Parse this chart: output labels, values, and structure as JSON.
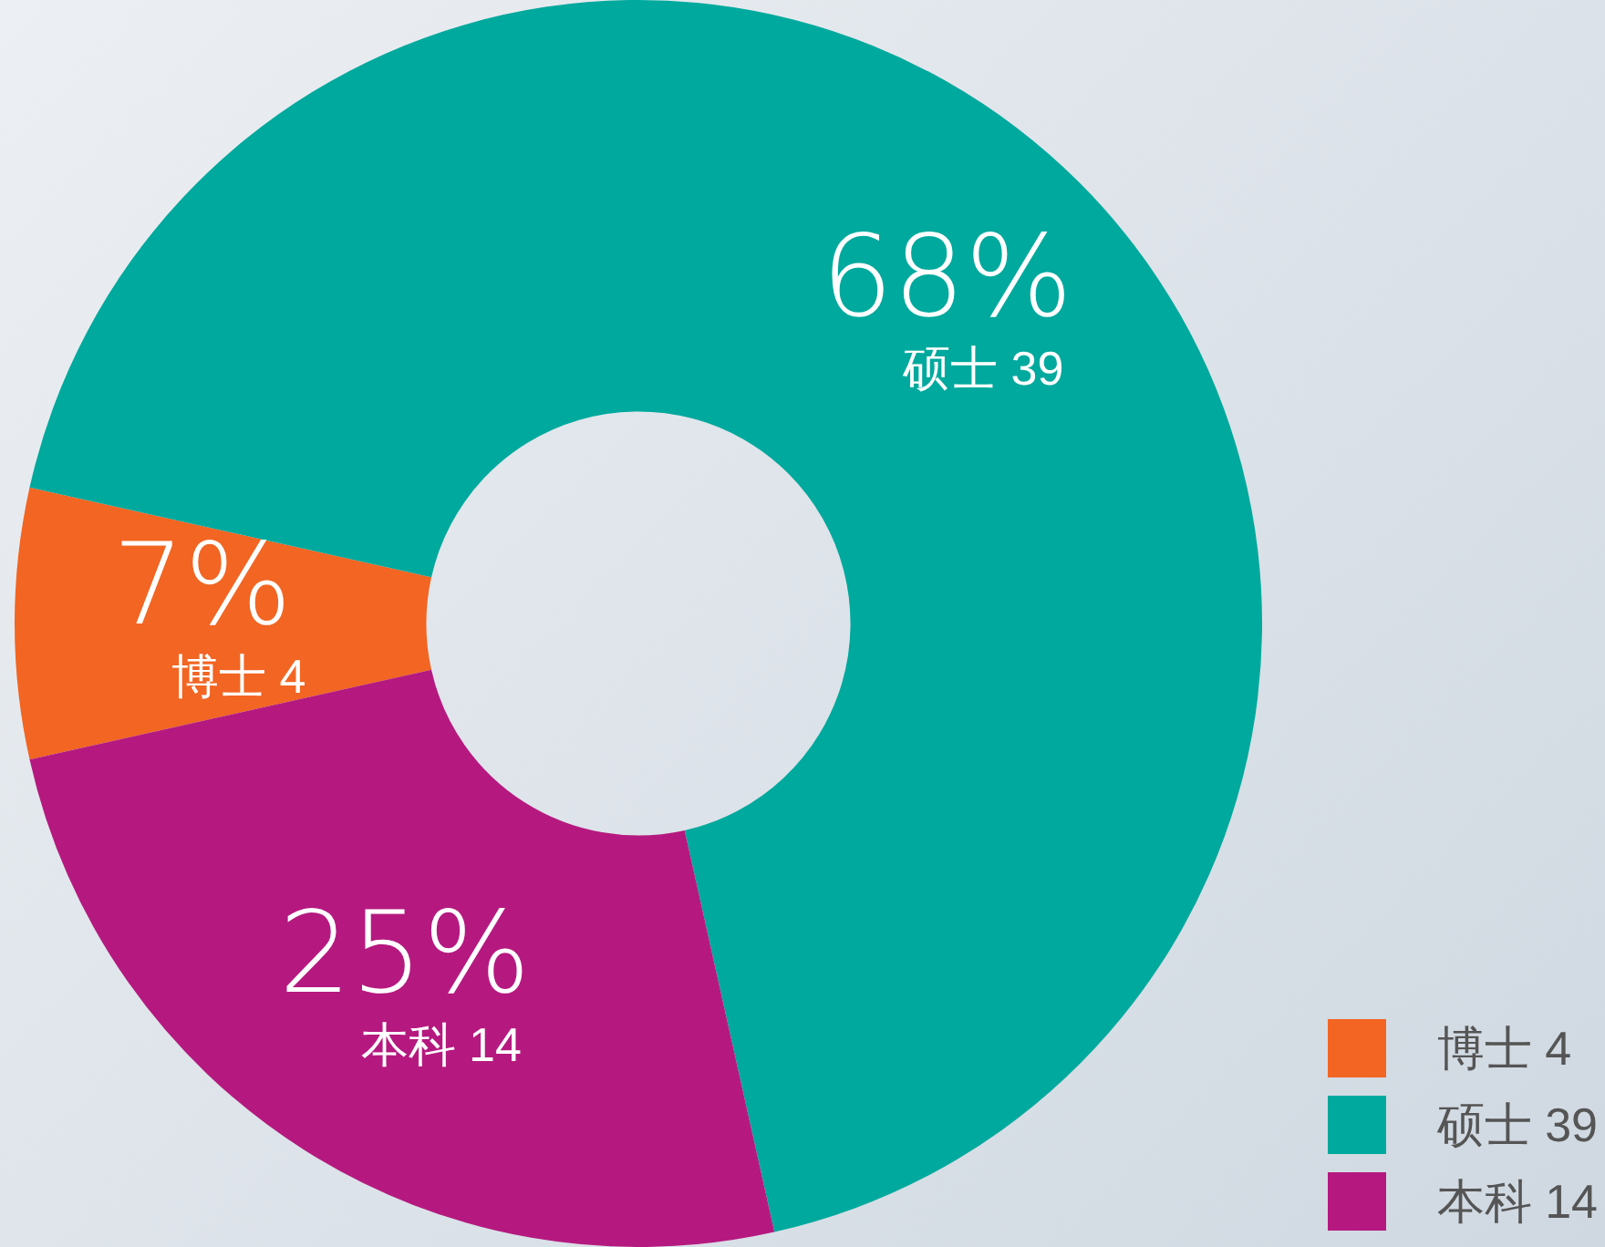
{
  "chart_data": {
    "type": "donut",
    "categories": [
      "博士 4",
      "硕士 39",
      "本科 14"
    ],
    "values": [
      7,
      68,
      25
    ],
    "value_labels": [
      "7%",
      "68%",
      "25%"
    ],
    "colors": [
      "#f26522",
      "#00a99d",
      "#b5197f"
    ],
    "legend": "bottom right"
  }
}
